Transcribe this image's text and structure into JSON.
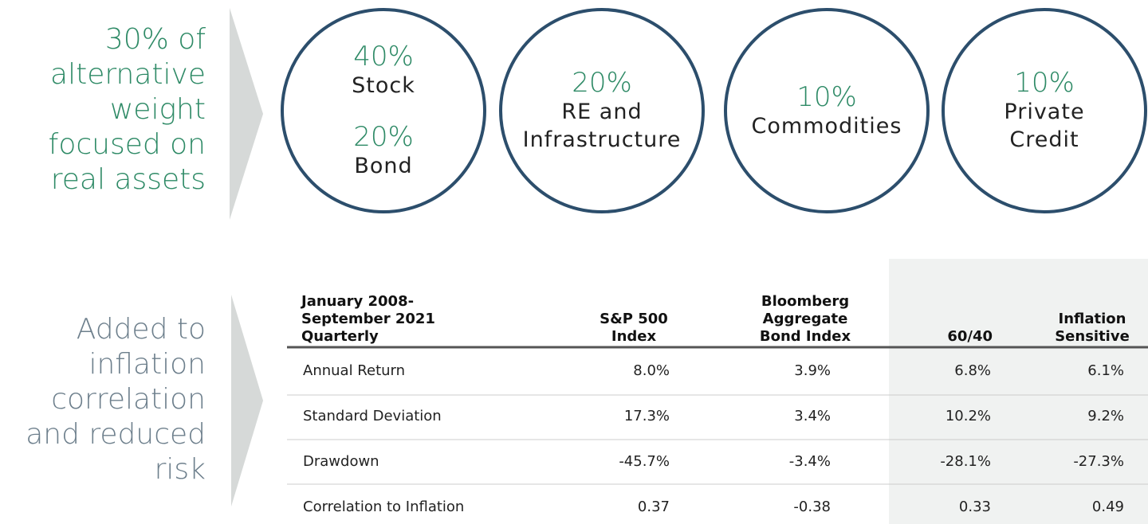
{
  "top": {
    "heading": [
      "30% of",
      "alternative",
      "weight",
      "focused on",
      "real assets"
    ],
    "circles": [
      {
        "items": [
          {
            "percent": "40%",
            "label": [
              "Stock"
            ]
          },
          {
            "percent": "20%",
            "label": [
              "Bond"
            ]
          }
        ]
      },
      {
        "items": [
          {
            "percent": "20%",
            "label": [
              "RE and",
              "Infrastructure"
            ]
          }
        ]
      },
      {
        "items": [
          {
            "percent": "10%",
            "label": [
              "Commodities"
            ]
          }
        ]
      },
      {
        "items": [
          {
            "percent": "10%",
            "label": [
              "Private",
              "Credit"
            ]
          }
        ]
      }
    ]
  },
  "bottom": {
    "heading": [
      "Added to",
      "inflation",
      "correlation",
      "and reduced",
      "risk"
    ],
    "table": {
      "header": [
        [
          "January 2008-",
          "September 2021",
          "Quarterly"
        ],
        [
          "S&P 500",
          "Index"
        ],
        [
          "Bloomberg",
          "Aggregate",
          "Bond Index"
        ],
        [
          "60/40"
        ],
        [
          "Inflation",
          "Sensitive"
        ]
      ],
      "rows": [
        [
          "Annual Return",
          "8.0%",
          "3.9%",
          "6.8%",
          "6.1%"
        ],
        [
          "Standard Deviation",
          "17.3%",
          "3.4%",
          "10.2%",
          "9.2%"
        ],
        [
          "Drawdown",
          "-45.7%",
          "-3.4%",
          "-28.1%",
          "-27.3%"
        ],
        [
          "Correlation to Inflation",
          "0.37",
          "-0.38",
          "0.33",
          "0.49"
        ]
      ]
    }
  }
}
